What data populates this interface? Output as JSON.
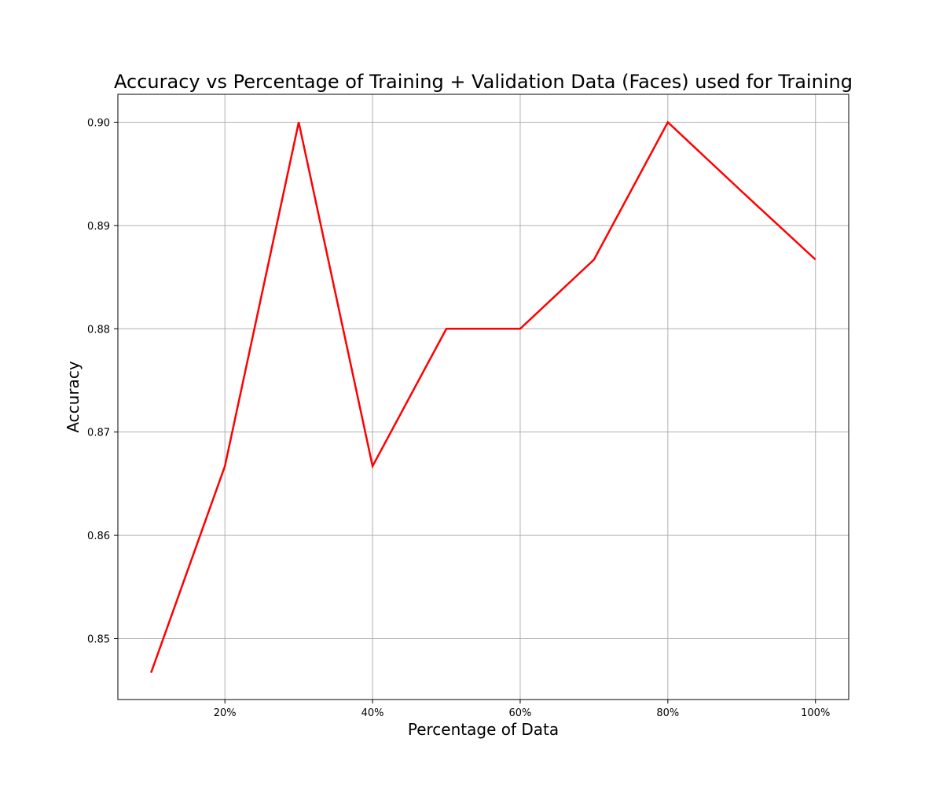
{
  "chart_data": {
    "type": "line",
    "title": "Accuracy vs Percentage of Training + Validation Data (Faces) used for Training",
    "xlabel": "Percentage of Data",
    "ylabel": "Accuracy",
    "xlim": [
      5.5,
      104.5
    ],
    "ylim": [
      0.8441,
      0.9027
    ],
    "x_ticks": [
      20,
      40,
      60,
      80,
      100
    ],
    "x_tick_labels": [
      "20%",
      "40%",
      "60%",
      "80%",
      "100%"
    ],
    "y_ticks": [
      0.85,
      0.86,
      0.87,
      0.88,
      0.89,
      0.9
    ],
    "y_tick_labels": [
      "0.85",
      "0.86",
      "0.87",
      "0.88",
      "0.89",
      "0.90"
    ],
    "grid": true,
    "series": [
      {
        "color": "#ff0000",
        "x": [
          10,
          20,
          30,
          40,
          50,
          60,
          70,
          80,
          90,
          100
        ],
        "y": [
          0.8467,
          0.8667,
          0.9,
          0.8667,
          0.88,
          0.88,
          0.8867,
          0.9,
          0.8933,
          0.8867
        ]
      }
    ]
  }
}
